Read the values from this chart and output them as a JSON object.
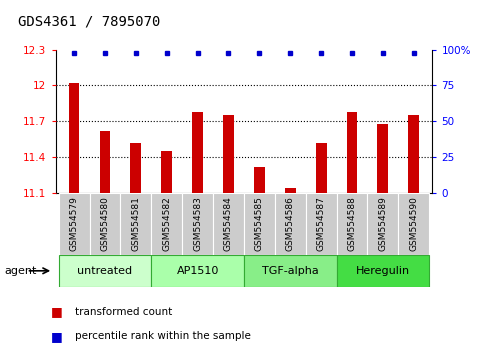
{
  "title": "GDS4361 / 7895070",
  "samples": [
    "GSM554579",
    "GSM554580",
    "GSM554581",
    "GSM554582",
    "GSM554583",
    "GSM554584",
    "GSM554585",
    "GSM554586",
    "GSM554587",
    "GSM554588",
    "GSM554589",
    "GSM554590"
  ],
  "bar_values": [
    12.02,
    11.62,
    11.52,
    11.45,
    11.78,
    11.75,
    11.32,
    11.14,
    11.52,
    11.78,
    11.68,
    11.75
  ],
  "ymin": 11.1,
  "ymax": 12.3,
  "yticks": [
    11.1,
    11.4,
    11.7,
    12.0,
    12.3
  ],
  "ytick_labels": [
    "11.1",
    "11.4",
    "11.7",
    "12",
    "12.3"
  ],
  "y2min": 0,
  "y2max": 100,
  "y2ticks": [
    0,
    25,
    50,
    75,
    100
  ],
  "y2tick_labels": [
    "0",
    "25",
    "50",
    "75",
    "100%"
  ],
  "bar_color": "#cc0000",
  "percentile_color": "#0000cc",
  "agent_groups": [
    {
      "label": "untreated",
      "start": 0,
      "end": 3,
      "color": "#ccffcc"
    },
    {
      "label": "AP1510",
      "start": 3,
      "end": 6,
      "color": "#aaffaa"
    },
    {
      "label": "TGF-alpha",
      "start": 6,
      "end": 9,
      "color": "#88ee88"
    },
    {
      "label": "Heregulin",
      "start": 9,
      "end": 12,
      "color": "#44dd44"
    }
  ],
  "legend_bar_label": "transformed count",
  "legend_pct_label": "percentile rank within the sample",
  "agent_label": "agent",
  "title_fontsize": 10,
  "tick_fontsize": 7.5,
  "sample_fontsize": 6.5,
  "agent_fontsize": 8,
  "legend_fontsize": 7.5
}
